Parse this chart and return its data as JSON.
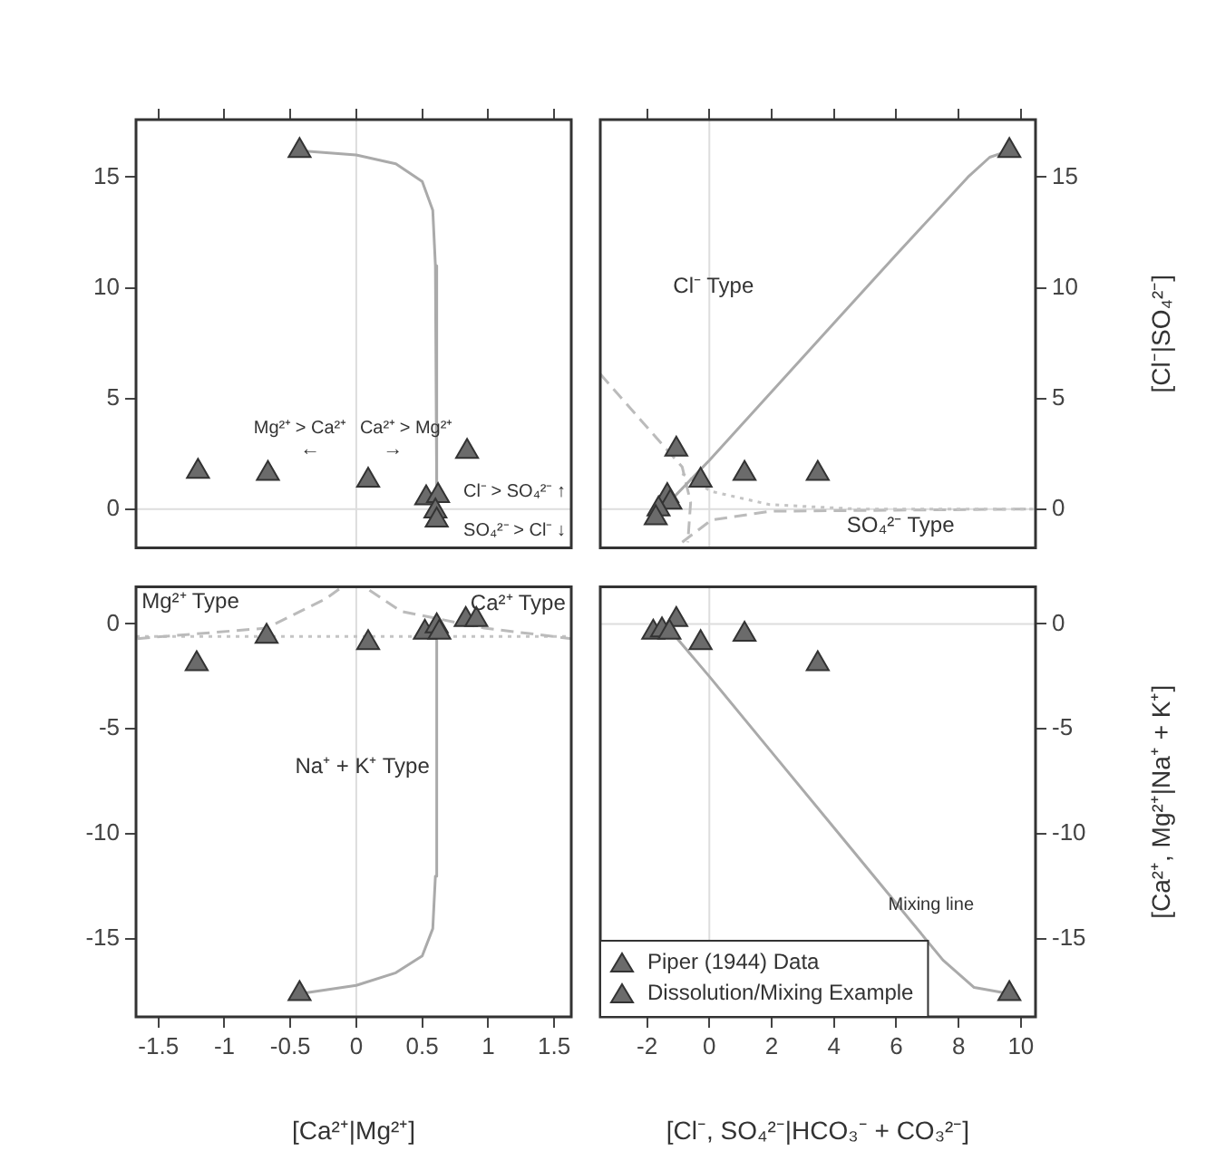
{
  "chart_data": [
    {
      "type": "scatter",
      "xlim": [
        -1.67,
        1.63
      ],
      "ylim": [
        -1.75,
        17.6
      ],
      "xticks": [
        -1.5,
        -1.0,
        -0.5,
        0.0,
        0.5,
        1.0,
        1.5
      ],
      "yticks": [
        0,
        5,
        10,
        15
      ],
      "tick_labels": "y",
      "marker": "triangle",
      "grid": false,
      "series": [
        {
          "type": "line",
          "color": "#aaaaaa",
          "line_style": "solid",
          "marker": "none",
          "x": [
            -0.43,
            0,
            0.3,
            0.5,
            0.58,
            0.6,
            0.61
          ],
          "values": [
            16.2,
            16,
            15.6,
            14.8,
            13.5,
            11,
            0.6
          ]
        },
        {
          "color": "#6b6b6b",
          "x": [
            -1.2,
            -0.67,
            0.09,
            0.84,
            0.53,
            0.62,
            0.6,
            0.61
          ],
          "values": [
            1.7,
            1.6,
            1.3,
            2.6,
            0.5,
            0.6,
            -0.1,
            -0.5
          ]
        },
        {
          "color": "#6b6b6b",
          "x": [
            -0.43
          ],
          "values": [
            16.2
          ]
        }
      ],
      "ref_lines": [
        {
          "axis": "x",
          "value": 0,
          "color": "#dddddd"
        },
        {
          "axis": "y",
          "value": 0,
          "color": "#dddddd"
        }
      ],
      "annotations": [
        "Mg²⁺ > Ca²⁺",
        "←",
        "Ca²⁺ > Mg²⁺",
        "→",
        "Cl⁻ > SO₄²⁻ ↑",
        "SO₄²⁻ > Cl⁻ ↓"
      ]
    },
    {
      "type": "scatter",
      "xlim": [
        -3.5,
        10.47
      ],
      "ylim": [
        -1.75,
        17.6
      ],
      "xticks": [
        -2,
        0,
        2,
        4,
        6,
        8,
        10
      ],
      "yticks": [
        0,
        5,
        10,
        15
      ],
      "tick_labels": "y",
      "marker": "triangle",
      "grid": false,
      "ylabel": "[Cl⁻|SO₄²⁻]",
      "series": [
        {
          "type": "line",
          "color": "#aaaaaa",
          "line_style": "solid",
          "marker": "none",
          "x": [
            -1.3,
            0,
            2,
            4,
            6,
            8.3,
            9,
            9.63
          ],
          "values": [
            0.3,
            2.2,
            5.3,
            8.4,
            11.5,
            15,
            15.9,
            16.2
          ]
        },
        {
          "type": "line",
          "color": "#bbbbbb",
          "line_style": "dashed",
          "marker": "none",
          "x": [
            -3.5,
            -2.19,
            -0.87,
            -0.6,
            -0.69
          ],
          "values": [
            6.1,
            4.0,
            1.9,
            0.3,
            -1.5
          ]
        },
        {
          "type": "line",
          "color": "#c4c4c4",
          "line_style": "dotted",
          "marker": "none",
          "x": [
            -0.87,
            0.06,
            1.94,
            4.75,
            10.4
          ],
          "values": [
            1.6,
            0.8,
            0.2,
            0,
            0
          ]
        },
        {
          "type": "line",
          "color": "#bbbbbb",
          "line_style": "dashed",
          "marker": "none",
          "x": [
            -0.87,
            0.06,
            1.94,
            10.4
          ],
          "values": [
            -1.5,
            -0.5,
            -0.1,
            0
          ]
        },
        {
          "color": "#6b6b6b",
          "x": [
            -1.06,
            -0.28,
            1.13,
            3.48,
            -1.35,
            -1.25,
            -1.63,
            -1.72
          ],
          "values": [
            2.7,
            1.3,
            1.6,
            1.6,
            0.6,
            0.3,
            0,
            -0.4
          ]
        },
        {
          "color": "#6b6b6b",
          "x": [
            9.63
          ],
          "values": [
            16.2
          ]
        }
      ],
      "ref_lines": [
        {
          "axis": "x",
          "value": 0,
          "color": "#dddddd"
        },
        {
          "axis": "y",
          "value": 0,
          "color": "#dddddd"
        }
      ],
      "annotations": [
        "Cl⁻ Type",
        "SO₄²⁻ Type"
      ]
    },
    {
      "type": "scatter",
      "xlim": [
        -1.67,
        1.63
      ],
      "ylim": [
        -18.7,
        1.76
      ],
      "xticks": [
        -1.5,
        -1.0,
        -0.5,
        0.0,
        0.5,
        1.0,
        1.5
      ],
      "yticks": [
        -15,
        -10,
        -5,
        0
      ],
      "marker": "triangle",
      "grid": false,
      "xlabel": "[Ca²⁺|Mg²⁺]",
      "series": [
        {
          "type": "line",
          "color": "#aaaaaa",
          "line_style": "solid",
          "marker": "none",
          "x": [
            -0.43,
            0,
            0.3,
            0.5,
            0.58,
            0.6,
            0.61
          ],
          "values": [
            -17.6,
            -17.2,
            -16.6,
            -15.8,
            -14.5,
            -12,
            -0.5
          ]
        },
        {
          "type": "line",
          "color": "#bbbbbb",
          "line_style": "dashed",
          "marker": "none",
          "x": [
            -1.66,
            -0.68,
            -0.23,
            -0.12
          ],
          "values": [
            -0.7,
            -0.2,
            1.2,
            1.7
          ]
        },
        {
          "type": "line",
          "color": "#bbbbbb",
          "line_style": "dashed",
          "marker": "none",
          "x": [
            0.1,
            0.34,
            0.97,
            1.63
          ],
          "values": [
            1.6,
            0.6,
            -0.2,
            -0.7
          ]
        },
        {
          "type": "line",
          "color": "#c4c4c4",
          "line_style": "dotted",
          "marker": "none",
          "x": [
            -1.67,
            1.63
          ],
          "values": [
            -0.6,
            -0.6
          ]
        },
        {
          "color": "#6b6b6b",
          "x": [
            -1.21,
            -0.68,
            0.09,
            0.52,
            0.61,
            0.63,
            0.83,
            0.91
          ],
          "values": [
            -1.9,
            -0.6,
            -0.9,
            -0.4,
            -0.1,
            -0.4,
            0.2,
            0.2
          ]
        },
        {
          "color": "#6b6b6b",
          "x": [
            -0.43
          ],
          "values": [
            -17.6
          ]
        }
      ],
      "ref_lines": [
        {
          "axis": "x",
          "value": 0,
          "color": "#dddddd"
        }
      ],
      "annotations": [
        "Mg²⁺ Type",
        "Ca²⁺ Type",
        "Na⁺ + K⁺ Type"
      ]
    },
    {
      "type": "scatter",
      "xlim": [
        -3.5,
        10.47
      ],
      "ylim": [
        -18.7,
        1.76
      ],
      "xticks": [
        -2,
        0,
        2,
        4,
        6,
        8,
        10
      ],
      "yticks": [
        -15,
        -10,
        -5,
        0
      ],
      "marker": "triangle",
      "grid": false,
      "legend": "bottom left",
      "xlabel": "[Cl⁻, SO₄²⁻|HCO₃⁻ + CO₃²⁻]",
      "ylabel": "[Ca²⁺, Mg²⁺|Na⁺ + K⁺]",
      "series": [
        {
          "type": "line",
          "color": "#aaaaaa",
          "line_style": "solid",
          "marker": "none",
          "x": [
            -1.2,
            0,
            2,
            4,
            6,
            7.5,
            8.5,
            9.63
          ],
          "values": [
            -0.4,
            -2.5,
            -6.1,
            -9.7,
            -13.3,
            -16,
            -17.3,
            -17.6
          ]
        },
        {
          "name": "Piper (1944) Data",
          "color": "#6b6b6b",
          "x": [
            -1.06,
            -1.8,
            -1.52,
            -1.28,
            -0.28,
            1.13,
            3.48
          ],
          "values": [
            0.2,
            -0.4,
            -0.3,
            -0.4,
            -0.9,
            -0.5,
            -1.9
          ]
        },
        {
          "name": "Dissolution/Mixing Example",
          "color": "#6b6b6b",
          "x": [
            9.63
          ],
          "values": [
            -17.6
          ]
        }
      ],
      "ref_lines": [
        {
          "axis": "x",
          "value": 0,
          "color": "#dddddd"
        },
        {
          "axis": "y",
          "value": 0,
          "color": "#dddddd"
        }
      ],
      "annotations": [
        "Mixing line"
      ]
    }
  ]
}
